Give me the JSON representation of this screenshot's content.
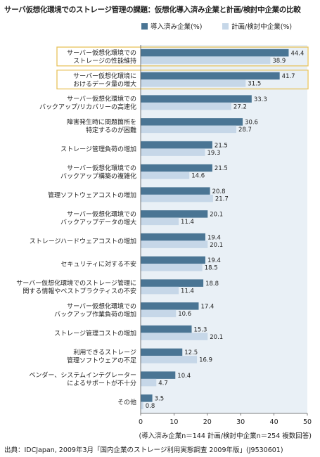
{
  "title": "サーバ仮想化環境でのストレージ管理の課題：仮想化導入済み企業と計画/検討中企業の比較",
  "note": "(導入済み企業n＝144 計画/検討中企業n＝254 複数回答)",
  "source": "出典：IDCJapan, 2009年3月「国内企業のストレージ利用実態調査 2009年版」(J9530601)",
  "colors": {
    "series1": "#4a7594",
    "series2": "#c6d7e8",
    "plot_bg": "#e9f0f6",
    "highlight_border": "#e8c25a",
    "highlight_fill": "#fdf9ec"
  },
  "chart_data": {
    "type": "bar",
    "orientation": "horizontal",
    "categories": [
      [
        "サーバー仮想化環境での",
        "ストレージの性能維持"
      ],
      [
        "サーバー仮想化環境に",
        "おけるデータ量の増大"
      ],
      [
        "サーバー仮想化環境での",
        "バックアップ/リカバリーの高速化"
      ],
      [
        "障害発生時に問題箇所を",
        "特定するのが困難"
      ],
      [
        "ストレージ管理負荷の増加"
      ],
      [
        "サーバー仮想化環境での",
        "バックアップ構築の複雑化"
      ],
      [
        "管理ソフトウェアコストの増加"
      ],
      [
        "サーバー仮想化環境での",
        "バックアップデータの増大"
      ],
      [
        "ストレージハードウェアコストの増加"
      ],
      [
        "セキュリティに対する不安"
      ],
      [
        "サーバー仮想化環境でのストレージ管理に",
        "関する情報やベストプラクティスの不安"
      ],
      [
        "サーバー仮想化環境での",
        "バックアップ作業負荷の増加"
      ],
      [
        "ストレージ管理コストの増加"
      ],
      [
        "利用できるストレージ",
        "管理ソフトウェアの不足"
      ],
      [
        "ベンダー、システムインテグレーター",
        "によるサポートが不十分"
      ],
      [
        "その他"
      ]
    ],
    "series": [
      {
        "name": "導入済み企業(%)",
        "values": [
          44.4,
          41.7,
          33.3,
          30.6,
          21.5,
          21.5,
          20.8,
          20.1,
          19.4,
          19.4,
          18.8,
          17.4,
          15.3,
          12.5,
          10.4,
          3.5
        ]
      },
      {
        "name": "計画/検討中企業(%)",
        "values": [
          38.9,
          31.5,
          27.2,
          28.7,
          19.3,
          14.6,
          21.7,
          11.4,
          20.1,
          18.5,
          11.4,
          10.6,
          20.1,
          16.9,
          4.7,
          0.8
        ]
      }
    ],
    "xlim": [
      0,
      50
    ],
    "xticks": [
      0,
      10,
      20,
      30,
      40,
      50
    ],
    "highlighted_categories": [
      0,
      1
    ],
    "legend_position": "top-right",
    "grid": false
  }
}
